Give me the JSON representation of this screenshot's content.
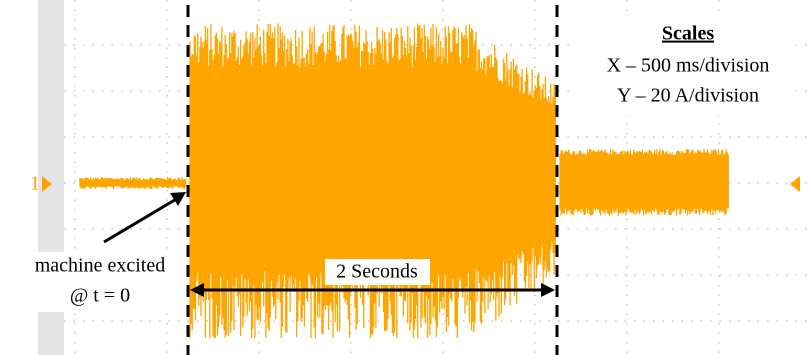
{
  "channel": "1",
  "scales": {
    "title": "Scales",
    "x": "X – 500 ms/division",
    "y": "Y – 20 A/division"
  },
  "annotations": {
    "excited": "machine excited",
    "time": "@ t = 0",
    "duration": "2 Seconds"
  }
}
